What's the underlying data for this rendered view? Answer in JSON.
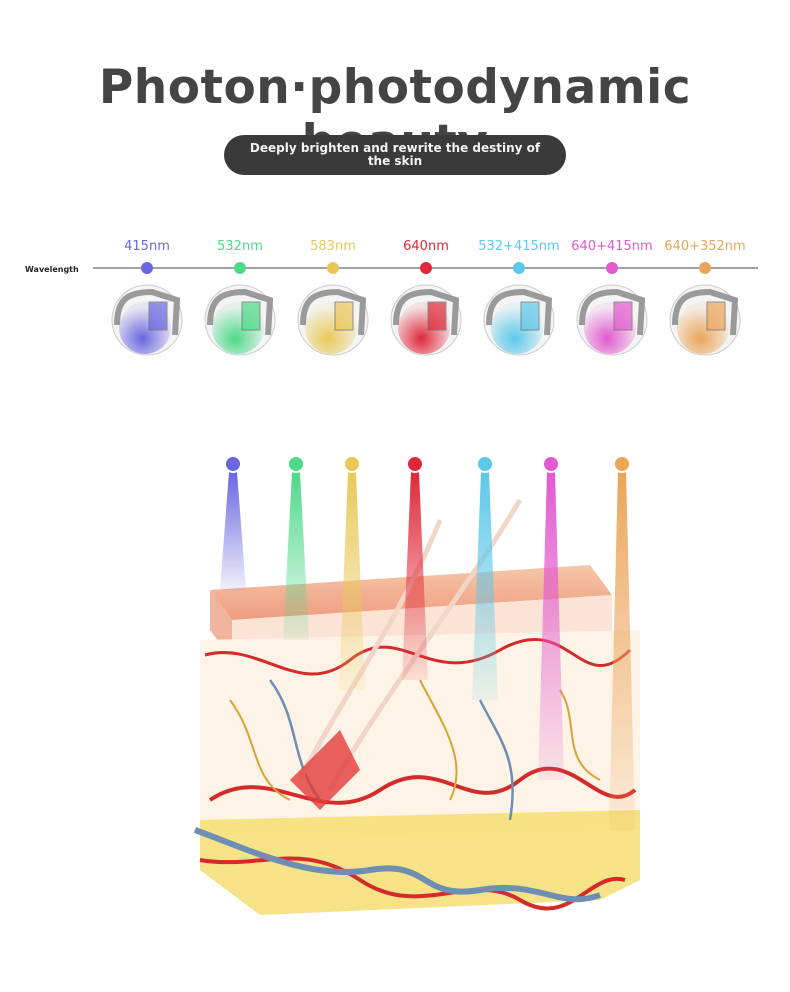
{
  "header": {
    "title": "Photon·photodynamic beauty",
    "subtitle": "Deeply brighten and rewrite the destiny of the skin"
  },
  "wavelength_label": "Wavelength",
  "wavelengths": [
    {
      "label": "415nm",
      "color": "#6a66e0"
    },
    {
      "label": "532nm",
      "color": "#4fd98a"
    },
    {
      "label": "583nm",
      "color": "#e9c85a"
    },
    {
      "label": "640nm",
      "color": "#e0283a"
    },
    {
      "label": "532+415nm",
      "color": "#5cc8ea"
    },
    {
      "label": "640+415nm",
      "color": "#e25ad0"
    },
    {
      "label": "640+352nm",
      "color": "#eba55a"
    }
  ]
}
